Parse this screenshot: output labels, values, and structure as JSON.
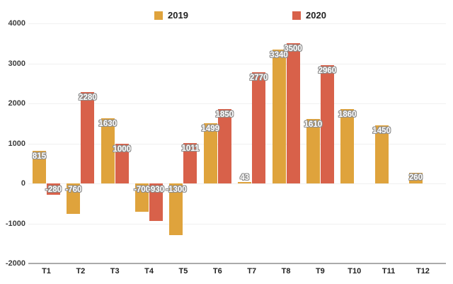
{
  "chart_data": {
    "type": "bar",
    "title": "",
    "xlabel": "",
    "ylabel": "",
    "categories": [
      "T1",
      "T2",
      "T3",
      "T4",
      "T5",
      "T6",
      "T7",
      "T8",
      "T9",
      "T10",
      "T11",
      "T12"
    ],
    "series": [
      {
        "name": "2019",
        "color": "#DFA33C",
        "values": [
          815,
          -760,
          1630,
          -700,
          -1300,
          1499,
          43,
          3340,
          1610,
          1860,
          1450,
          260
        ]
      },
      {
        "name": "2020",
        "color": "#D8614A",
        "values": [
          -280,
          2280,
          1000,
          -930,
          1011,
          1850,
          2770,
          3500,
          2960,
          null,
          null,
          null
        ]
      }
    ],
    "ylim": [
      -2000,
      4000
    ],
    "yticks": [
      4000,
      3000,
      2000,
      1000,
      0,
      -1000,
      -2000
    ],
    "grid": true,
    "legend_position": "top",
    "value_labels_shown": true,
    "label_text_color": "#ffffff"
  }
}
